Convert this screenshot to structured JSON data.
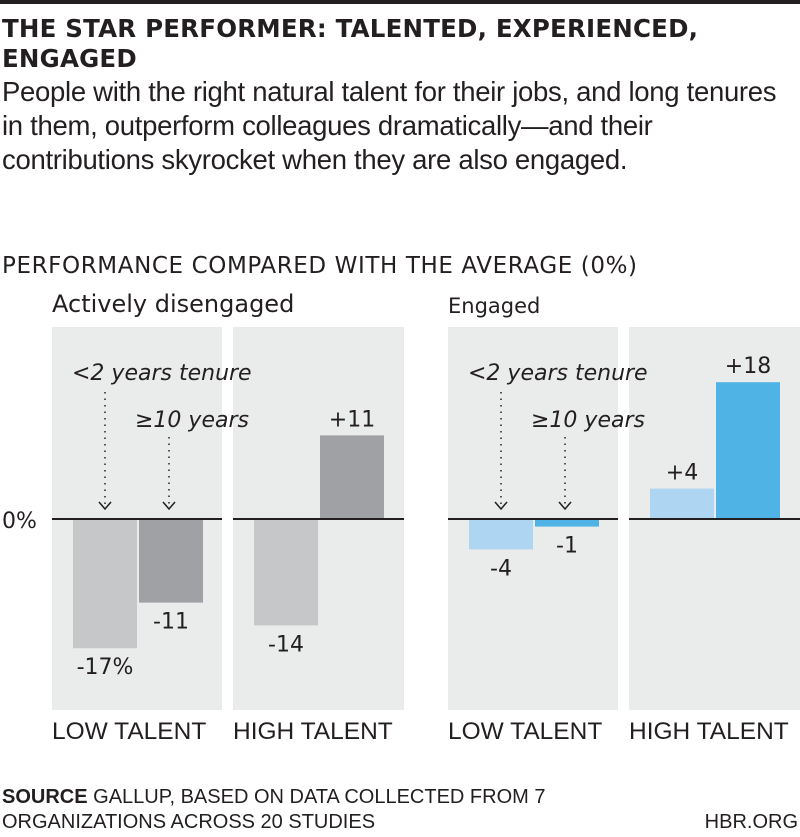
{
  "title": "THE STAR PERFORMER: TALENTED, EXPERIENCED, ENGAGED",
  "subtitle": "People with the right natural talent for their jobs, and long tenures in them, outperform colleagues dramatically—and their contributions skyrocket when they are also engaged.",
  "source_label": "SOURCE",
  "source_text": " GALLUP, BASED ON DATA COLLECTED FROM 7 ORGANIZATIONS ACROSS 20 STUDIES",
  "credit": "HBR.ORG",
  "colors": {
    "disengaged_short_tenure": "#c6c7c9",
    "disengaged_long_tenure": "#a0a1a4",
    "engaged_short_tenure": "#aed5f1",
    "engaged_long_tenure": "#4fb3e6",
    "panel_background": "#eaebeb",
    "zero_line": "#231f20"
  },
  "chart_data": {
    "type": "bar",
    "title": "PERFORMANCE COMPARED WITH THE AVERAGE (0%)",
    "xlabel": "",
    "ylabel": "",
    "zero_label": "0%",
    "ylim": [
      -24,
      25
    ],
    "grid": false,
    "groups": [
      {
        "name": "Actively disengaged",
        "categories": [
          "LOW TALENT",
          "HIGH TALENT"
        ],
        "series": [
          {
            "name": "<2 years tenure",
            "values": [
              -17,
              -14
            ],
            "labels": [
              "-17%",
              "-14"
            ]
          },
          {
            "name": "≥10 years",
            "values": [
              -11,
              11
            ],
            "labels": [
              "-11",
              "+11"
            ]
          }
        ]
      },
      {
        "name": "Engaged",
        "categories": [
          "LOW TALENT",
          "HIGH TALENT"
        ],
        "series": [
          {
            "name": "<2 years tenure",
            "values": [
              -4,
              4
            ],
            "labels": [
              "-4",
              "+4"
            ]
          },
          {
            "name": "≥10 years",
            "values": [
              -1,
              18
            ],
            "labels": [
              "-1",
              "+18"
            ]
          }
        ]
      }
    ],
    "annotations": [
      "<2 years tenure",
      "≥10 years"
    ]
  }
}
